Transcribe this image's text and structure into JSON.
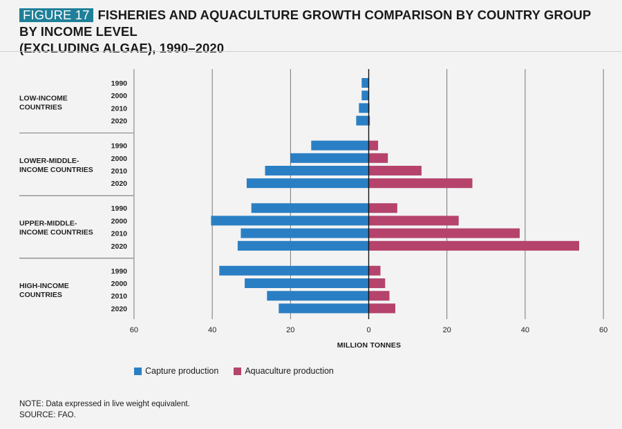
{
  "figure": {
    "badge": "FIGURE 17",
    "title_line1": "FISHERIES AND AQUACULTURE GROWTH COMPARISON BY COUNTRY GROUP BY INCOME LEVEL",
    "title_line2": "(EXCLUDING ALGAE), 1990–2020"
  },
  "notes": {
    "note": "NOTE: Data expressed in live weight equivalent.",
    "source": "SOURCE: FAO."
  },
  "colors": {
    "capture": "#2a7fc4",
    "aquaculture": "#b5436c",
    "badge": "#1f7f99"
  },
  "chart_data": {
    "type": "bar",
    "orientation": "horizontal",
    "xlabel": "MILLION TONNES",
    "xlim": [
      -60,
      60
    ],
    "x_ticks": [
      -60,
      -40,
      -20,
      0,
      20,
      40,
      60
    ],
    "x_tick_labels": [
      "60",
      "40",
      "20",
      "0",
      "20",
      "40",
      "60"
    ],
    "grid": true,
    "legend_position": "bottom-left",
    "groups": [
      {
        "label": "LOW-INCOME COUNTRIES",
        "label_lines": [
          "LOW-INCOME",
          "COUNTRIES"
        ],
        "years": [
          "1990",
          "2000",
          "2010",
          "2020"
        ],
        "capture": [
          1.8,
          1.8,
          2.5,
          3.2
        ],
        "aquaculture": [
          0.1,
          0.1,
          0.2,
          0.3
        ]
      },
      {
        "label": "LOWER-MIDDLE-INCOME COUNTRIES",
        "label_lines": [
          "LOWER-MIDDLE-",
          "INCOME COUNTRIES"
        ],
        "years": [
          "1990",
          "2000",
          "2010",
          "2020"
        ],
        "capture": [
          14.7,
          20,
          26.5,
          31.2
        ],
        "aquaculture": [
          2.4,
          4.9,
          13.5,
          26.5
        ]
      },
      {
        "label": "UPPER-MIDDLE-INCOME COUNTRIES",
        "label_lines": [
          "UPPER-MIDDLE-",
          "INCOME COUNTRIES"
        ],
        "years": [
          "1990",
          "2000",
          "2010",
          "2020"
        ],
        "capture": [
          30,
          40.3,
          32.7,
          33.5
        ],
        "aquaculture": [
          7.3,
          23,
          38.6,
          53.8
        ]
      },
      {
        "label": "HIGH-INCOME COUNTRIES",
        "label_lines": [
          "HIGH-INCOME",
          "COUNTRIES"
        ],
        "years": [
          "1990",
          "2000",
          "2010",
          "2020"
        ],
        "capture": [
          38.2,
          31.7,
          26,
          23
        ],
        "aquaculture": [
          3,
          4.2,
          5.3,
          6.8
        ]
      }
    ],
    "series": [
      {
        "name": "Capture production",
        "key": "capture"
      },
      {
        "name": "Aquaculture production",
        "key": "aquaculture"
      }
    ]
  }
}
